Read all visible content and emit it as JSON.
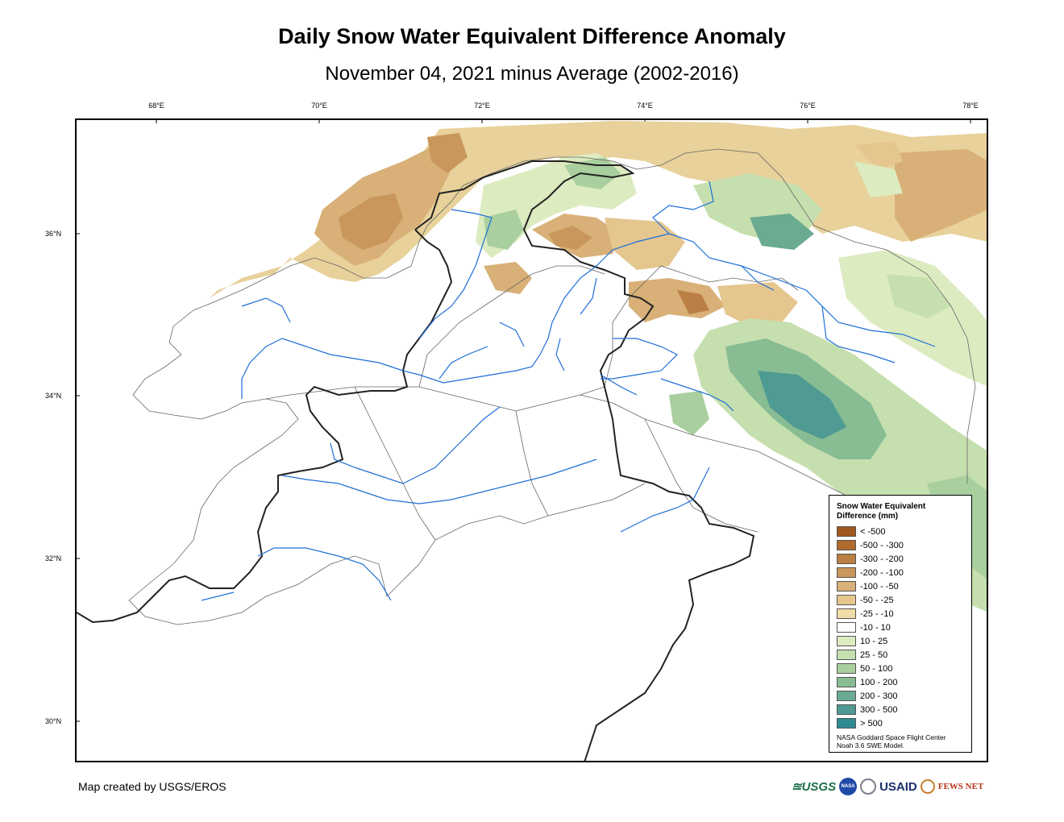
{
  "title": "Daily Snow Water Equivalent Difference Anomaly",
  "subtitle": "November 04, 2021 minus Average (2002-2016)",
  "longitude_labels": [
    "68°E",
    "70°E",
    "72°E",
    "74°E",
    "76°E",
    "78°E"
  ],
  "latitude_labels": [
    "36°N",
    "34°N",
    "32°N",
    "30°N"
  ],
  "legend": {
    "title_line1": "Snow Water Equivalent",
    "title_line2": "Difference (mm)",
    "classes": [
      {
        "label": "< -500",
        "color": "#a0581f"
      },
      {
        "label": "-500 - -300",
        "color": "#af6a2e"
      },
      {
        "label": "-300 - -200",
        "color": "#bb7f45"
      },
      {
        "label": "-200 - -100",
        "color": "#c9975c"
      },
      {
        "label": "-100 - -50",
        "color": "#d8b078"
      },
      {
        "label": "-50 - -25",
        "color": "#e4c68e"
      },
      {
        "label": "-25 - -10",
        "color": "#f0dca6"
      },
      {
        "label": "-10 - 10",
        "color": "#ffffff"
      },
      {
        "label": "10 - 25",
        "color": "#dcebc0"
      },
      {
        "label": "25 - 50",
        "color": "#c6dfae"
      },
      {
        "label": "50 - 100",
        "color": "#a9cf9f"
      },
      {
        "label": "100 - 200",
        "color": "#88bd94"
      },
      {
        "label": "200 - 300",
        "color": "#6aab91"
      },
      {
        "label": "300 - 500",
        "color": "#4f9a92"
      },
      {
        "label": "> 500",
        "color": "#2f8b93"
      }
    ],
    "source_line1": "NASA Goddard Space Flight Center",
    "source_line2": "Noah 3.6 SWE Model."
  },
  "credit": "Map created by USGS/EROS",
  "logos": {
    "usgs": "≊USGS",
    "nasa": "NASA",
    "usaid": "USAID",
    "fews": "FEWS NET"
  },
  "colors": {
    "frame": "#000000",
    "rivers": "#1e6fd9",
    "basin_outline": "#666666",
    "border": "#222222"
  }
}
